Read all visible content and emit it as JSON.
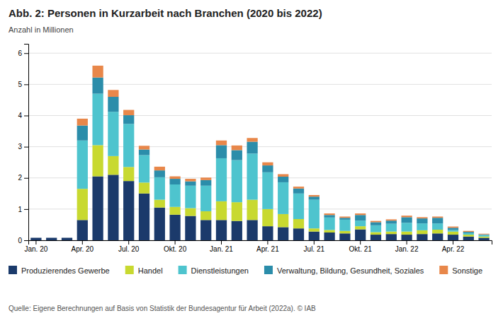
{
  "chart_data": {
    "type": "bar",
    "stacked": true,
    "title": "Abb. 2: Personen in Kurzarbeit nach Branchen (2020 bis 2022)",
    "ylabel": "Anzahl in Millionen",
    "source": "Quelle: Eigene Berechnungen auf Basis von Statistik der Bundesagentur für Arbeit (2022a). © IAB",
    "categories": [
      "Jan. 20",
      null,
      null,
      "Apr. 20",
      null,
      null,
      "Jul. 20",
      null,
      null,
      "Okt. 20",
      null,
      null,
      "Jan. 21",
      null,
      null,
      "Apr. 21",
      null,
      null,
      "Jul. 21",
      null,
      null,
      "Okt. 21",
      null,
      null,
      "Jan. 22",
      null,
      null,
      "Apr. 22",
      null,
      null
    ],
    "series": [
      {
        "name": "Produzierendes Gewerbe",
        "color": "#1b3a6b",
        "values": [
          0.08,
          0.08,
          0.08,
          0.65,
          2.05,
          2.1,
          1.9,
          1.5,
          1.05,
          0.82,
          0.78,
          0.65,
          0.65,
          0.62,
          0.65,
          0.45,
          0.42,
          0.38,
          0.28,
          0.25,
          0.22,
          0.35,
          0.18,
          0.2,
          0.18,
          0.2,
          0.22,
          0.18,
          0.12,
          0.08
        ]
      },
      {
        "name": "Handel",
        "color": "#c8d930",
        "values": [
          0.0,
          0.0,
          0.0,
          1.0,
          1.0,
          0.6,
          0.45,
          0.35,
          0.25,
          0.25,
          0.25,
          0.28,
          0.6,
          0.6,
          0.65,
          0.55,
          0.42,
          0.3,
          0.1,
          0.08,
          0.08,
          0.1,
          0.08,
          0.08,
          0.1,
          0.12,
          0.12,
          0.1,
          0.06,
          0.04
        ]
      },
      {
        "name": "Dienstleistungen",
        "color": "#4ec4ce",
        "values": [
          0.0,
          0.0,
          0.0,
          1.55,
          1.65,
          1.42,
          1.38,
          0.88,
          0.72,
          0.72,
          0.72,
          0.82,
          1.38,
          1.35,
          1.48,
          1.18,
          1.02,
          0.82,
          0.92,
          0.4,
          0.36,
          0.18,
          0.22,
          0.25,
          0.28,
          0.22,
          0.2,
          0.05,
          0.05,
          0.05
        ]
      },
      {
        "name": "Verwaltung, Bildung, Gesundheit, Soziales",
        "color": "#2b8daa",
        "values": [
          0.0,
          0.0,
          0.0,
          0.48,
          0.52,
          0.48,
          0.28,
          0.18,
          0.22,
          0.18,
          0.14,
          0.18,
          0.42,
          0.32,
          0.38,
          0.22,
          0.18,
          0.16,
          0.1,
          0.08,
          0.06,
          0.18,
          0.1,
          0.1,
          0.18,
          0.16,
          0.18,
          0.07,
          0.04,
          0.02
        ]
      },
      {
        "name": "Sonstige",
        "color": "#e8874a",
        "values": [
          0.0,
          0.0,
          0.0,
          0.22,
          0.38,
          0.22,
          0.17,
          0.12,
          0.12,
          0.08,
          0.08,
          0.08,
          0.15,
          0.15,
          0.12,
          0.1,
          0.08,
          0.06,
          0.05,
          0.05,
          0.04,
          0.05,
          0.04,
          0.04,
          0.05,
          0.04,
          0.04,
          0.04,
          0.03,
          0.02
        ]
      }
    ],
    "ylim": [
      0,
      6.3
    ],
    "yticks": [
      0,
      1,
      2,
      3,
      4,
      5,
      6
    ],
    "grid": true,
    "legend": "bottom"
  }
}
